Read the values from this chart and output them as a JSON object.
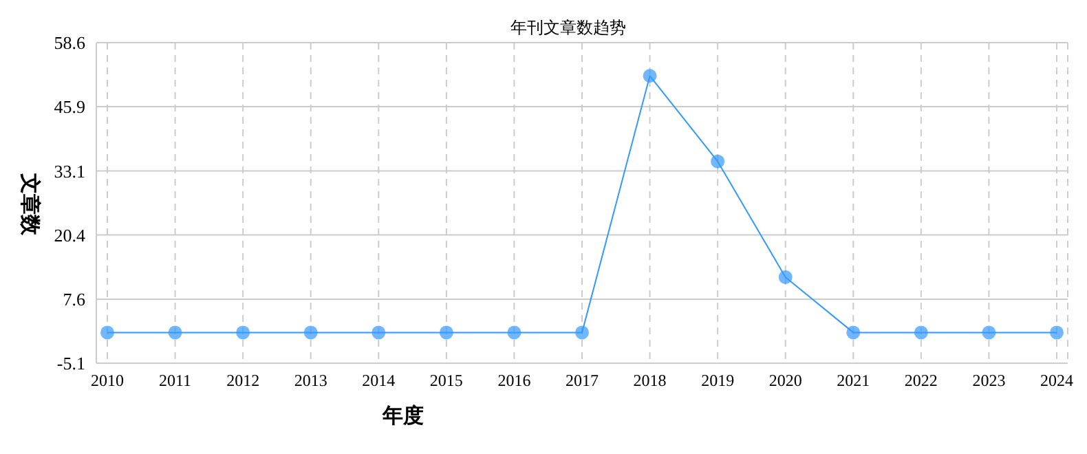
{
  "chart_data": {
    "type": "line",
    "title": "年刊文章数趋势",
    "xlabel": "年度",
    "ylabel": "文章数",
    "categories": [
      "2010",
      "2011",
      "2012",
      "2013",
      "2014",
      "2015",
      "2016",
      "2017",
      "2018",
      "2019",
      "2020",
      "2021",
      "2022",
      "2023",
      "2024"
    ],
    "series": [
      {
        "color": "#3399ff",
        "values": [
          1,
          1,
          1,
          1,
          1,
          1,
          1,
          1,
          52,
          35,
          12,
          1,
          1,
          1,
          1
        ]
      }
    ],
    "ylim": [
      -5.1,
      58.6
    ],
    "yticks": [
      -5.1,
      7.6,
      20.4,
      33.1,
      45.9,
      58.6
    ],
    "grid": true,
    "legend": false,
    "marker": "circle",
    "line_style": "solid"
  }
}
